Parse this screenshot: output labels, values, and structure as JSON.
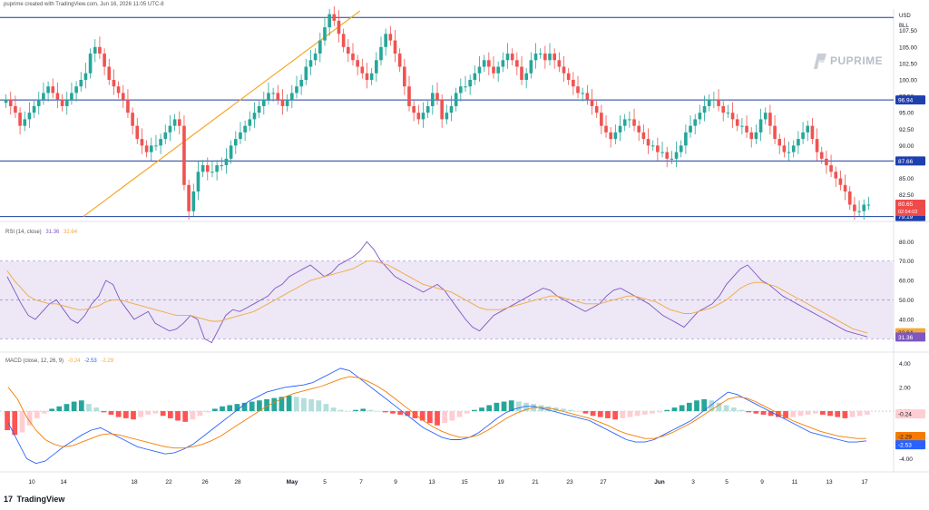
{
  "header": {
    "note": "puprime created with TradingView.com, Jun 16, 2026 11:05 UTC-8"
  },
  "logo": {
    "text": "PUPRIME"
  },
  "footer": {
    "brand": "TradingView",
    "glyph": "17"
  },
  "chart_data": [
    {
      "type": "candlestick",
      "currency": "USD",
      "unit": "BLL",
      "yticks": [
        82.5,
        85.0,
        87.5,
        90.0,
        92.5,
        95.0,
        97.5,
        100.0,
        102.5,
        105.0,
        107.5
      ],
      "ylim": [
        79,
        110.5
      ],
      "x_labels": [
        "10",
        "14",
        "18",
        "22",
        "26",
        "28",
        "May",
        "5",
        "7",
        "9",
        "13",
        "15",
        "19",
        "21",
        "23",
        "27",
        "Jun",
        "3",
        "5",
        "9",
        "11",
        "13",
        "17"
      ],
      "horizontal_levels": [
        109.5,
        96.94,
        87.66,
        79.19
      ],
      "level_labels": [
        "96.94",
        "87.66",
        "79.19"
      ],
      "last_price": "80.65",
      "countdown": "02:54:02",
      "trendline": {
        "from": [
          17,
          79.2
        ],
        "to": [
          76,
          110.5
        ]
      },
      "series": [
        {
          "name": "",
          "values": [
            97,
            96,
            95,
            93,
            94,
            95,
            96,
            97,
            98,
            99,
            98,
            97,
            96,
            97,
            98,
            99,
            100,
            101,
            104,
            105,
            104,
            102,
            100,
            99,
            98,
            97,
            95,
            93,
            91,
            90,
            89,
            90,
            90,
            91,
            92,
            93,
            94,
            93,
            84,
            80,
            83,
            86,
            87,
            86,
            86,
            87,
            87,
            88,
            90,
            91,
            92,
            93,
            94,
            95,
            96,
            97,
            98,
            98,
            97,
            96,
            97,
            98,
            99,
            100,
            102,
            103,
            104,
            106,
            108,
            110,
            109,
            107,
            105,
            104,
            103,
            102,
            101,
            100,
            101,
            103,
            105,
            107,
            106,
            104,
            102,
            99,
            96,
            95,
            94,
            95,
            96,
            98,
            97,
            94,
            95,
            96,
            98,
            99,
            99,
            100,
            101,
            102,
            103,
            102,
            101,
            102,
            103,
            104,
            103,
            102,
            100,
            101,
            103,
            104,
            104,
            103,
            104,
            103,
            102,
            101,
            100,
            99,
            98,
            98,
            97,
            96,
            95,
            93,
            92,
            91,
            92,
            93,
            94,
            94,
            93,
            92,
            91,
            90,
            90,
            89,
            89,
            88,
            88,
            89,
            90,
            92,
            93,
            94,
            95,
            96,
            97,
            97,
            96,
            95,
            95,
            94,
            93,
            93,
            92,
            91,
            92,
            94,
            95,
            93,
            91,
            90,
            89,
            89,
            90,
            91,
            92,
            93,
            91,
            89,
            88,
            87,
            86,
            85,
            84,
            83,
            81,
            80,
            80,
            81,
            81
          ]
        }
      ]
    },
    {
      "type": "line",
      "title": "RSI (14, close)",
      "legend_values": [
        "31.36",
        "32.64"
      ],
      "yticks": [
        30.0,
        40.0,
        50.0,
        60.0,
        70.0,
        80.0
      ],
      "ylim": [
        25,
        82
      ],
      "band": [
        30,
        70
      ],
      "midline": 50,
      "last_values": [
        "32.64",
        "31.36"
      ],
      "series": [
        {
          "name": "",
          "color": "#7e57c2",
          "values": [
            62,
            55,
            48,
            42,
            40,
            44,
            48,
            50,
            45,
            40,
            38,
            42,
            48,
            52,
            60,
            58,
            50,
            45,
            40,
            42,
            44,
            38,
            36,
            34,
            35,
            38,
            42,
            40,
            30,
            28,
            35,
            42,
            45,
            44,
            46,
            48,
            50,
            52,
            56,
            58,
            62,
            64,
            66,
            68,
            65,
            62,
            64,
            68,
            70,
            72,
            75,
            80,
            76,
            70,
            66,
            62,
            60,
            58,
            56,
            54,
            56,
            58,
            55,
            50,
            45,
            40,
            36,
            34,
            38,
            42,
            44,
            46,
            48,
            50,
            52,
            54,
            56,
            55,
            52,
            50,
            48,
            46,
            44,
            46,
            48,
            52,
            55,
            56,
            54,
            52,
            50,
            48,
            45,
            42,
            40,
            38,
            36,
            40,
            44,
            46,
            48,
            52,
            58,
            62,
            66,
            68,
            64,
            60,
            58,
            55,
            52,
            50,
            48,
            46,
            44,
            42,
            40,
            38,
            36,
            34,
            33,
            32,
            31
          ]
        },
        {
          "name": "",
          "color": "#f2a93b",
          "values": [
            65,
            60,
            56,
            52,
            50,
            49,
            48,
            48,
            47,
            46,
            45,
            45,
            46,
            47,
            49,
            50,
            50,
            49,
            48,
            47,
            46,
            45,
            44,
            43,
            42,
            42,
            42,
            41,
            40,
            39,
            39,
            40,
            41,
            42,
            43,
            44,
            46,
            48,
            50,
            52,
            54,
            56,
            58,
            60,
            61,
            62,
            63,
            64,
            65,
            66,
            68,
            70,
            70,
            69,
            68,
            66,
            64,
            62,
            60,
            58,
            57,
            56,
            55,
            54,
            52,
            50,
            48,
            46,
            45,
            45,
            45,
            46,
            47,
            48,
            49,
            50,
            51,
            52,
            52,
            51,
            50,
            49,
            48,
            48,
            48,
            49,
            50,
            51,
            52,
            52,
            51,
            50,
            49,
            47,
            45,
            44,
            43,
            43,
            44,
            45,
            46,
            48,
            50,
            53,
            56,
            58,
            59,
            59,
            58,
            57,
            55,
            53,
            51,
            49,
            47,
            45,
            43,
            41,
            39,
            37,
            35,
            34,
            33
          ]
        }
      ]
    },
    {
      "type": "bar",
      "title": "MACD (close, 12, 26, 9)",
      "legend_values": [
        "-0.24",
        "-2.53",
        "-2.29"
      ],
      "yticks": [
        -4.0,
        -2.0,
        0.0,
        2.0,
        4.0
      ],
      "ylim": [
        -4.5,
        4.2
      ],
      "last_values": [
        "-0.24",
        "-2.29",
        "-2.53"
      ],
      "histogram": [
        -1.6,
        -2.0,
        -1.8,
        -1.2,
        -0.6,
        -0.2,
        0.2,
        0.4,
        0.6,
        0.8,
        0.9,
        0.6,
        0.3,
        -0.1,
        -0.3,
        -0.5,
        -0.6,
        -0.7,
        -0.5,
        -0.3,
        -0.2,
        -0.4,
        -0.6,
        -0.8,
        -0.9,
        -0.7,
        -0.4,
        -0.1,
        0.2,
        0.4,
        0.5,
        0.6,
        0.7,
        0.8,
        0.9,
        1.0,
        1.1,
        1.2,
        1.3,
        1.2,
        1.1,
        1.0,
        0.9,
        0.6,
        0.3,
        0.1,
        0.0,
        0.1,
        0.2,
        0.1,
        0.0,
        -0.1,
        -0.2,
        -0.3,
        -0.4,
        -0.6,
        -0.8,
        -1.0,
        -1.2,
        -1.0,
        -0.8,
        -0.5,
        -0.2,
        0.1,
        0.3,
        0.5,
        0.7,
        0.8,
        0.9,
        0.8,
        0.7,
        0.6,
        0.5,
        0.4,
        0.3,
        0.2,
        0.1,
        0.0,
        -0.2,
        -0.4,
        -0.5,
        -0.6,
        -0.7,
        -0.6,
        -0.5,
        -0.4,
        -0.3,
        -0.2,
        -0.1,
        0.1,
        0.3,
        0.5,
        0.7,
        0.9,
        1.0,
        0.9,
        0.7,
        0.5,
        0.3,
        0.1,
        -0.1,
        -0.2,
        -0.3,
        -0.4,
        -0.5,
        -0.6,
        -0.5,
        -0.4,
        -0.3,
        -0.2,
        -0.3,
        -0.4,
        -0.5,
        -0.6,
        -0.5,
        -0.4,
        -0.3
      ],
      "series": [
        {
          "name": "",
          "color": "#2962ff",
          "values": [
            -1,
            -2.5,
            -4,
            -4.4,
            -4.2,
            -3.6,
            -3.0,
            -2.5,
            -2.0,
            -1.6,
            -1.4,
            -1.8,
            -2.2,
            -2.6,
            -3.0,
            -3.2,
            -3.4,
            -3.6,
            -3.5,
            -3.2,
            -2.8,
            -2.2,
            -1.6,
            -1.0,
            -0.4,
            0.2,
            0.8,
            1.2,
            1.6,
            1.8,
            2.0,
            2.1,
            2.2,
            2.4,
            2.8,
            3.2,
            3.6,
            3.4,
            2.8,
            2.2,
            1.6,
            1.0,
            0.4,
            -0.2,
            -0.8,
            -1.4,
            -1.8,
            -2.2,
            -2.4,
            -2.4,
            -2.2,
            -1.8,
            -1.2,
            -0.6,
            -0.1,
            0.2,
            0.4,
            0.4,
            0.2,
            0.0,
            -0.2,
            -0.4,
            -0.6,
            -0.8,
            -1.2,
            -1.6,
            -2.0,
            -2.4,
            -2.6,
            -2.6,
            -2.4,
            -2.0,
            -1.6,
            -1.2,
            -0.8,
            -0.2,
            0.4,
            1.0,
            1.6,
            1.4,
            1.0,
            0.6,
            0.2,
            -0.2,
            -0.6,
            -1.0,
            -1.4,
            -1.8,
            -2.0,
            -2.2,
            -2.4,
            -2.6,
            -2.6,
            -2.5
          ]
        },
        {
          "name": "",
          "color": "#f57c00",
          "values": [
            2,
            1,
            -0.5,
            -1.6,
            -2.4,
            -2.8,
            -3.0,
            -2.9,
            -2.6,
            -2.3,
            -2.0,
            -1.9,
            -2.0,
            -2.2,
            -2.4,
            -2.6,
            -2.8,
            -3.0,
            -3.1,
            -3.1,
            -3.0,
            -2.8,
            -2.5,
            -2.1,
            -1.6,
            -1.1,
            -0.6,
            -0.1,
            0.4,
            0.8,
            1.2,
            1.5,
            1.7,
            1.9,
            2.1,
            2.4,
            2.7,
            2.9,
            2.8,
            2.5,
            2.1,
            1.6,
            1.0,
            0.4,
            -0.2,
            -0.8,
            -1.3,
            -1.7,
            -2.0,
            -2.2,
            -2.2,
            -2.0,
            -1.6,
            -1.1,
            -0.6,
            -0.2,
            0.1,
            0.3,
            0.3,
            0.2,
            0.0,
            -0.2,
            -0.4,
            -0.6,
            -0.9,
            -1.2,
            -1.6,
            -1.9,
            -2.1,
            -2.3,
            -2.3,
            -2.1,
            -1.8,
            -1.4,
            -1.0,
            -0.5,
            0.0,
            0.5,
            1.0,
            1.2,
            1.1,
            0.8,
            0.4,
            0.0,
            -0.4,
            -0.8,
            -1.1,
            -1.4,
            -1.7,
            -1.9,
            -2.1,
            -2.2,
            -2.3,
            -2.3
          ]
        }
      ]
    }
  ]
}
